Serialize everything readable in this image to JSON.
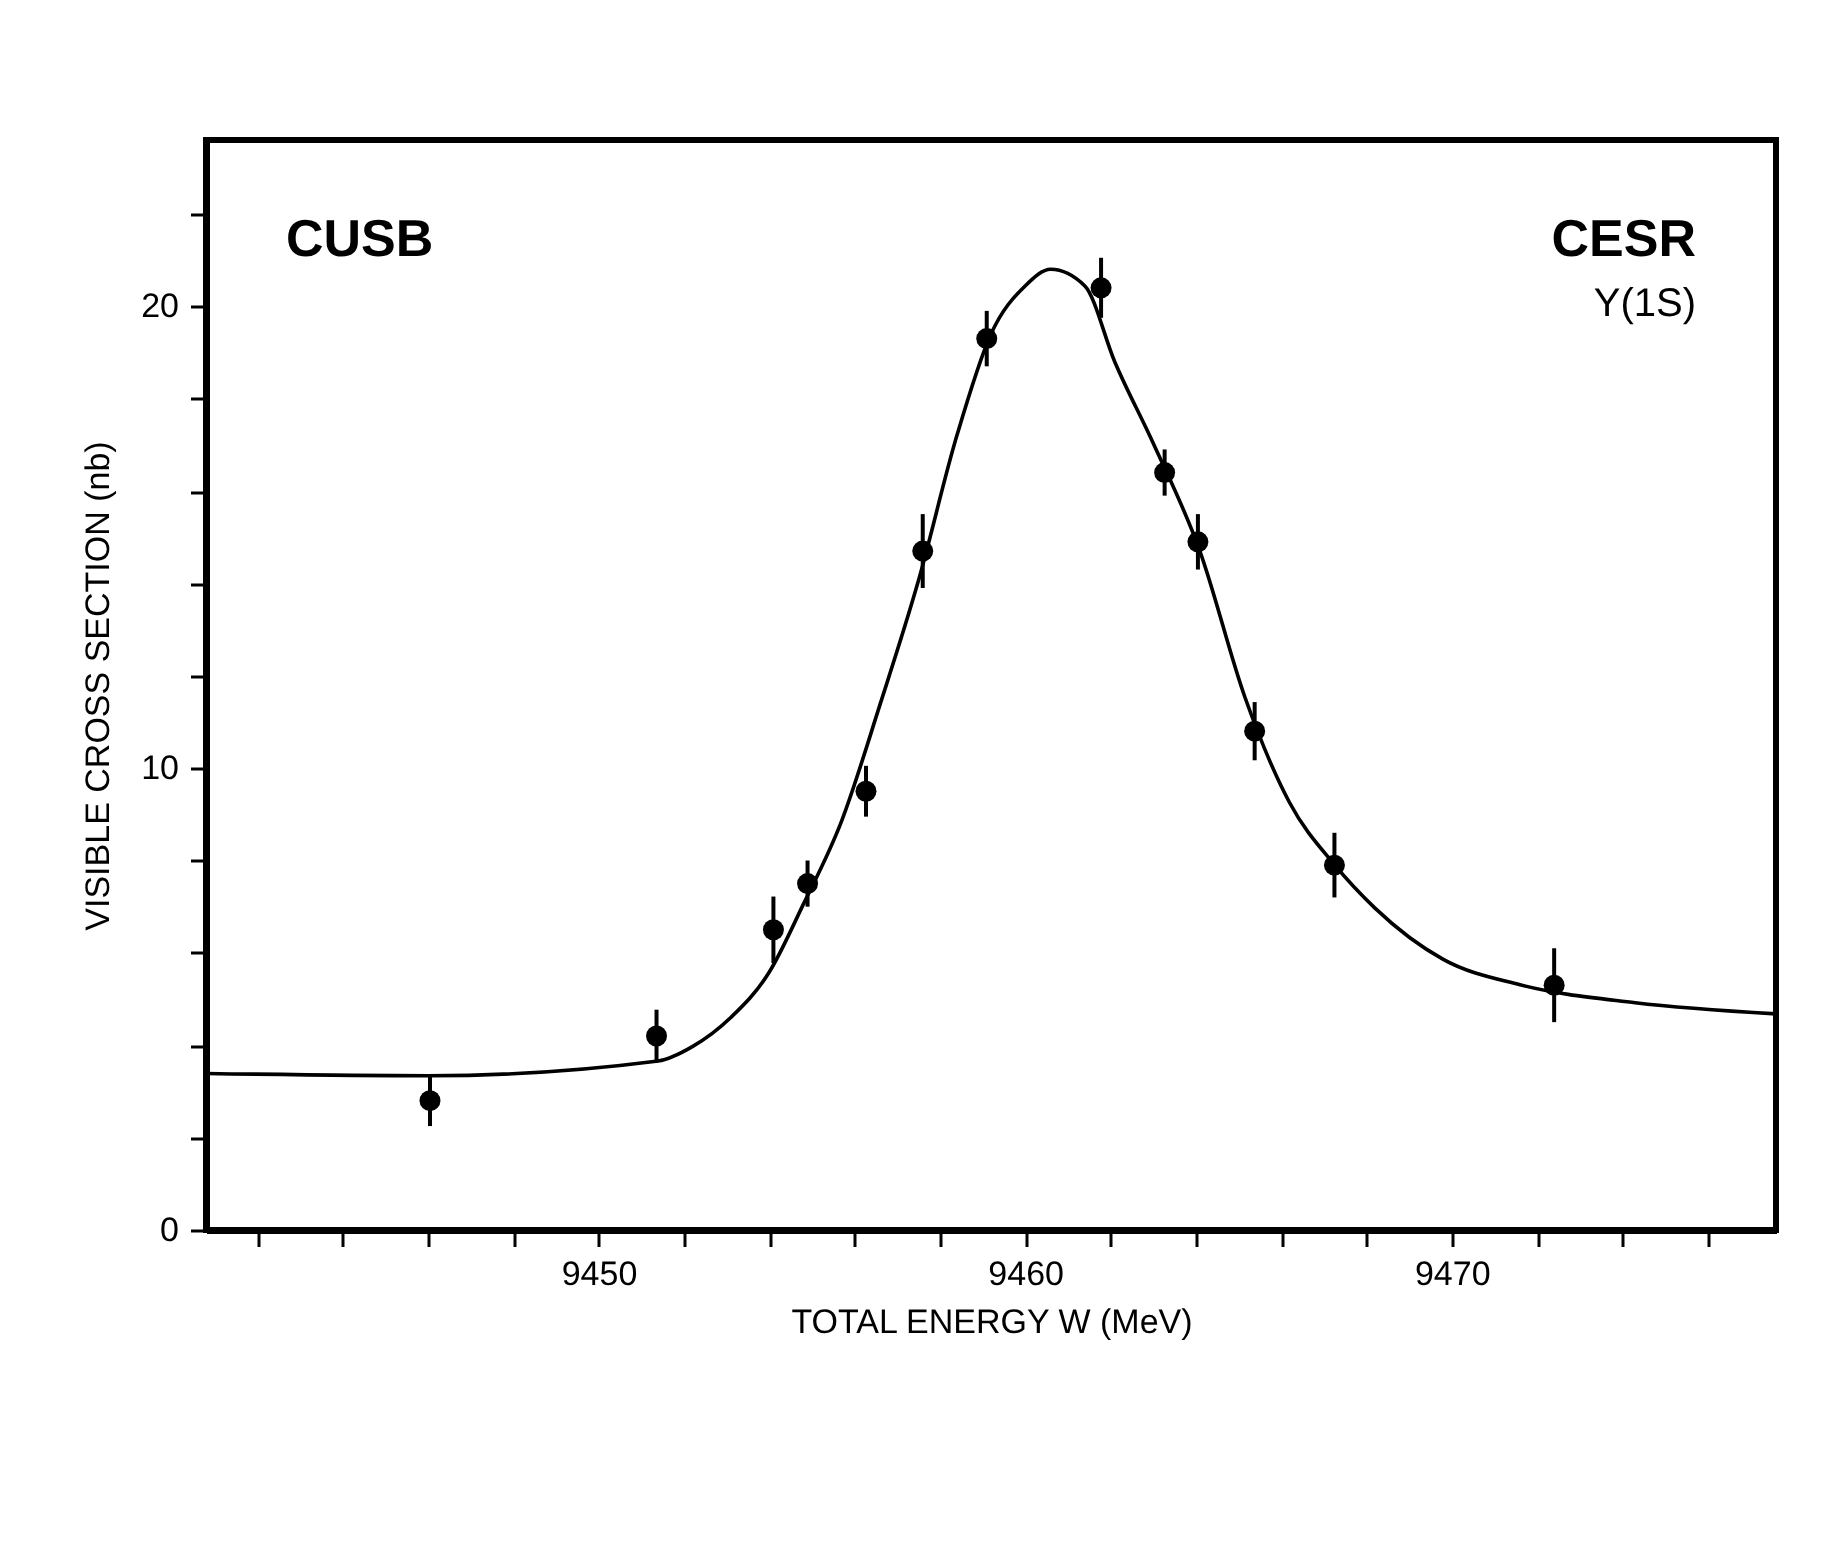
{
  "chart_data": {
    "type": "scatter",
    "xlabel": "TOTAL ENERGY W (MeV)",
    "ylabel": "VISIBLE CROSS SECTION (nb)",
    "annotations": [
      "CUSB",
      "CESR",
      "Υ(1S)"
    ],
    "xlim": [
      9440.8,
      9477.6
    ],
    "ylim": [
      0,
      23.6
    ],
    "xticks": [
      {
        "value": 9442,
        "label": null
      },
      {
        "value": 9444,
        "label": null
      },
      {
        "value": 9446,
        "label": null
      },
      {
        "value": 9448,
        "label": null
      },
      9450,
      {
        "value": 9452,
        "label": null
      },
      {
        "value": 9454,
        "label": null
      },
      {
        "value": 9456,
        "label": null
      },
      {
        "value": 9458,
        "label": null
      },
      9460,
      {
        "value": 9462,
        "label": null
      },
      {
        "value": 9464,
        "label": null
      },
      {
        "value": 9466,
        "label": null
      },
      {
        "value": 9468,
        "label": null
      },
      9470,
      {
        "value": 9472,
        "label": null
      },
      {
        "value": 9474,
        "label": null
      },
      {
        "value": 9476,
        "label": null
      }
    ],
    "yticks": [
      0,
      {
        "value": 2,
        "label": null
      },
      {
        "value": 4,
        "label": null
      },
      {
        "value": 6,
        "label": null
      },
      {
        "value": 8,
        "label": null
      },
      10,
      {
        "value": 12,
        "label": null
      },
      {
        "value": 14,
        "label": null
      },
      {
        "value": 16,
        "label": null
      },
      {
        "value": 18,
        "label": null
      },
      20,
      {
        "value": 22,
        "label": null
      }
    ],
    "series": [
      {
        "marker": "circle",
        "color": "#000000",
        "x": [
          9446.05,
          9451.36,
          9454.1,
          9454.9,
          9456.27,
          9457.6,
          9459.1,
          9461.78,
          9463.27,
          9464.05,
          9465.38,
          9467.25,
          9472.4
        ],
        "values": [
          2.8,
          4.2,
          6.5,
          7.5,
          9.5,
          14.7,
          19.3,
          20.4,
          16.4,
          14.9,
          10.8,
          7.9,
          5.3
        ],
        "errors": [
          0.55,
          0.57,
          0.72,
          0.5,
          0.55,
          0.8,
          0.6,
          0.65,
          0.5,
          0.6,
          0.63,
          0.7,
          0.8
        ]
      },
      {
        "type": "line",
        "color": "#000000",
        "x": [
          9440.8,
          9446,
          9451.4,
          9452.2,
          9453.1,
          9454.0,
          9454.8,
          9455.7,
          9456.6,
          9457.5,
          9458.4,
          9459.2,
          9460.0,
          9460.6,
          9461.4,
          9462.1,
          9463.0,
          9464.1,
          9465.15,
          9466.2,
          9467.25,
          9468.2,
          9469.8,
          9471.6,
          9474.3,
          9477.6
        ],
        "values": [
          3.39,
          3.34,
          3.66,
          3.97,
          4.6,
          5.58,
          7.05,
          8.86,
          11.38,
          14.06,
          17.2,
          19.4,
          20.44,
          20.8,
          20.44,
          18.8,
          17.04,
          14.69,
          11.54,
          9.25,
          7.91,
          6.97,
          5.86,
          5.31,
          4.92,
          4.68
        ]
      }
    ]
  }
}
